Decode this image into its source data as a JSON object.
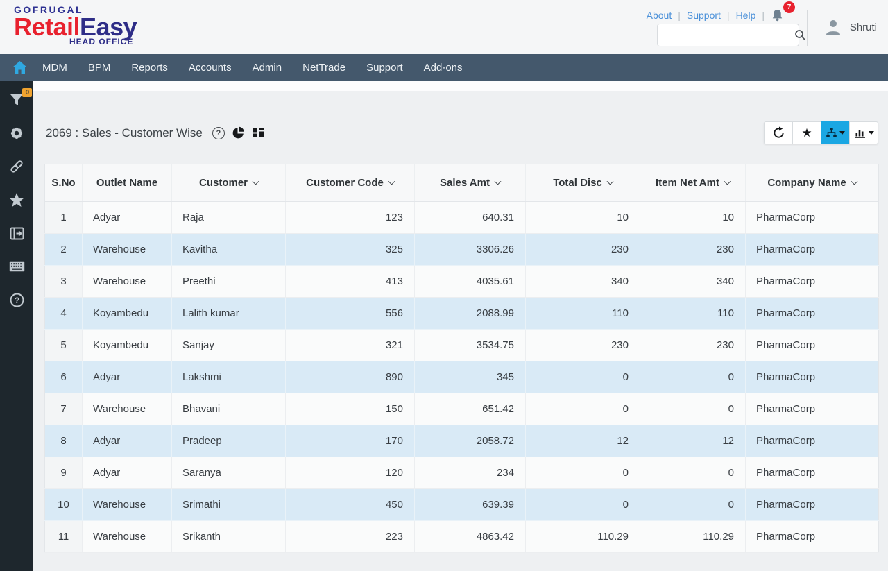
{
  "colors": {
    "accent_blue": "#1ba7e3",
    "brand_red": "#e8212e",
    "brand_blue": "#2e2d87",
    "nav_bg": "#44586c",
    "sidebar_bg": "#1e272d",
    "row_alt_blue": "#d9eaf6",
    "notification_red": "#e8212e",
    "filter_badge_orange": "#f0a32f",
    "link_blue": "#4a90d9"
  },
  "header": {
    "brand": "GOFRUGAL",
    "product_red": "Retail",
    "product_blue": "Easy",
    "product_sub": "HEAD OFFICE",
    "links": [
      "About",
      "Support",
      "Help"
    ],
    "notification_count": "7",
    "search_value": "",
    "user_name": "Shruti"
  },
  "nav": {
    "items": [
      "MDM",
      "BPM",
      "Reports",
      "Accounts",
      "Admin",
      "NetTrade",
      "Support",
      "Add-ons"
    ]
  },
  "sidebar": {
    "filter_badge": "0",
    "icons": [
      "filter-icon",
      "gear-icon",
      "link-icon",
      "star-icon",
      "export-window-icon",
      "keyboard-icon",
      "help-icon"
    ]
  },
  "report": {
    "title": "2069 : Sales - Customer Wise"
  },
  "toolbar": {
    "buttons": [
      "refresh",
      "favorite",
      "hierarchy-view",
      "chart-view"
    ],
    "active_button": "hierarchy-view"
  },
  "table": {
    "columns": [
      {
        "key": "sno",
        "label": "S.No",
        "sortable": false,
        "align": "center"
      },
      {
        "key": "outlet",
        "label": "Outlet Name",
        "sortable": false,
        "align": "left"
      },
      {
        "key": "customer",
        "label": "Customer",
        "sortable": true,
        "align": "left"
      },
      {
        "key": "code",
        "label": "Customer Code",
        "sortable": true,
        "align": "right"
      },
      {
        "key": "sales",
        "label": "Sales Amt",
        "sortable": true,
        "align": "right"
      },
      {
        "key": "disc",
        "label": "Total Disc",
        "sortable": true,
        "align": "right"
      },
      {
        "key": "net",
        "label": "Item Net Amt",
        "sortable": true,
        "align": "right"
      },
      {
        "key": "company",
        "label": "Company Name",
        "sortable": true,
        "align": "left"
      }
    ],
    "rows": [
      {
        "sno": "1",
        "outlet": "Adyar",
        "customer": "Raja",
        "code": "123",
        "sales": "640.31",
        "disc": "10",
        "net": "10",
        "company": "PharmaCorp"
      },
      {
        "sno": "2",
        "outlet": "Warehouse",
        "customer": "Kavitha",
        "code": "325",
        "sales": "3306.26",
        "disc": "230",
        "net": "230",
        "company": "PharmaCorp"
      },
      {
        "sno": "3",
        "outlet": "Warehouse",
        "customer": "Preethi",
        "code": "413",
        "sales": "4035.61",
        "disc": "340",
        "net": "340",
        "company": "PharmaCorp"
      },
      {
        "sno": "4",
        "outlet": "Koyambedu",
        "customer": "Lalith kumar",
        "code": "556",
        "sales": "2088.99",
        "disc": "110",
        "net": "110",
        "company": "PharmaCorp"
      },
      {
        "sno": "5",
        "outlet": "Koyambedu",
        "customer": "Sanjay",
        "code": "321",
        "sales": "3534.75",
        "disc": "230",
        "net": "230",
        "company": "PharmaCorp"
      },
      {
        "sno": "6",
        "outlet": "Adyar",
        "customer": "Lakshmi",
        "code": "890",
        "sales": "345",
        "disc": "0",
        "net": "0",
        "company": "PharmaCorp"
      },
      {
        "sno": "7",
        "outlet": "Warehouse",
        "customer": "Bhavani",
        "code": "150",
        "sales": "651.42",
        "disc": "0",
        "net": "0",
        "company": "PharmaCorp"
      },
      {
        "sno": "8",
        "outlet": "Adyar",
        "customer": "Pradeep",
        "code": "170",
        "sales": "2058.72",
        "disc": "12",
        "net": "12",
        "company": "PharmaCorp"
      },
      {
        "sno": "9",
        "outlet": "Adyar",
        "customer": "Saranya",
        "code": "120",
        "sales": "234",
        "disc": "0",
        "net": "0",
        "company": "PharmaCorp"
      },
      {
        "sno": "10",
        "outlet": "Warehouse",
        "customer": "Srimathi",
        "code": "450",
        "sales": "639.39",
        "disc": "0",
        "net": "0",
        "company": "PharmaCorp"
      },
      {
        "sno": "11",
        "outlet": "Warehouse",
        "customer": "Srikanth",
        "code": "223",
        "sales": "4863.42",
        "disc": "110.29",
        "net": "110.29",
        "company": "PharmaCorp"
      }
    ]
  }
}
